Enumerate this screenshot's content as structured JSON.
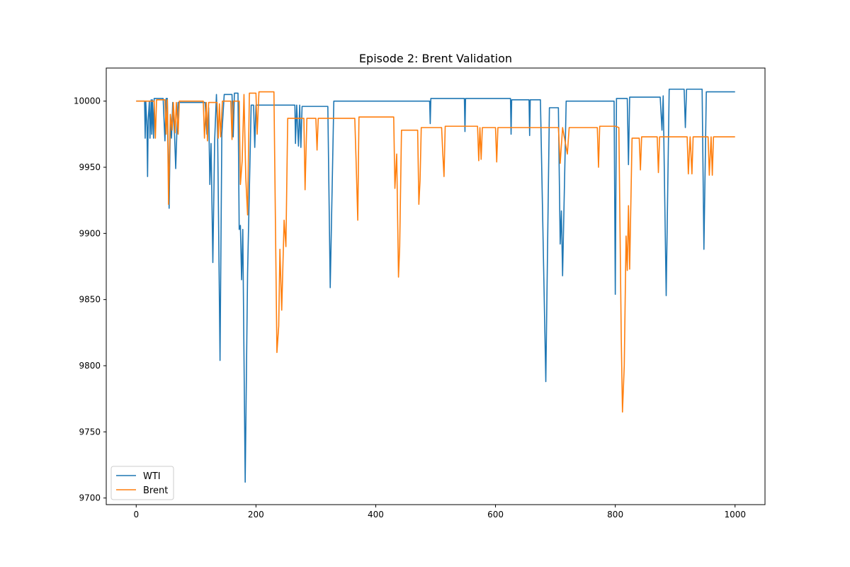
{
  "chart_data": {
    "type": "line",
    "title": "Episode 2: Brent Validation",
    "xlabel": "",
    "ylabel": "",
    "xlim": [
      -50,
      1050
    ],
    "ylim": [
      9695,
      10025
    ],
    "x_ticks": [
      0,
      200,
      400,
      600,
      800,
      1000
    ],
    "y_ticks": [
      9700,
      9750,
      9800,
      9850,
      9900,
      9950,
      10000
    ],
    "grid": false,
    "legend": "lower-left",
    "series": [
      {
        "name": "WTI",
        "color": "#1f77b4",
        "points": [
          [
            0,
            10000
          ],
          [
            14,
            10000
          ],
          [
            15,
            9972
          ],
          [
            16,
            10000
          ],
          [
            18,
            9980
          ],
          [
            19,
            9943
          ],
          [
            20,
            9985
          ],
          [
            22,
            10000
          ],
          [
            23,
            9972
          ],
          [
            25,
            10001
          ],
          [
            26,
            9975
          ],
          [
            27,
            10001
          ],
          [
            29,
            9972
          ],
          [
            30,
            10002
          ],
          [
            45,
            10002
          ],
          [
            48,
            9970
          ],
          [
            50,
            10002
          ],
          [
            52,
            10002
          ],
          [
            55,
            9919
          ],
          [
            57,
            9985
          ],
          [
            59,
            9972
          ],
          [
            61,
            9999
          ],
          [
            64,
            9975
          ],
          [
            66,
            9949
          ],
          [
            68,
            9978
          ],
          [
            70,
            9999
          ],
          [
            115,
            9999
          ],
          [
            118,
            9975
          ],
          [
            121,
            9995
          ],
          [
            123,
            9937
          ],
          [
            125,
            9968
          ],
          [
            128,
            9878
          ],
          [
            131,
            9970
          ],
          [
            134,
            10005
          ],
          [
            136,
            9975
          ],
          [
            140,
            9804
          ],
          [
            143,
            9975
          ],
          [
            147,
            10005
          ],
          [
            160,
            10005
          ],
          [
            162,
            9973
          ],
          [
            164,
            10006
          ],
          [
            170,
            10006
          ],
          [
            172,
            9903
          ],
          [
            174,
            9906
          ],
          [
            176,
            9865
          ],
          [
            178,
            9903
          ],
          [
            182,
            9712
          ],
          [
            186,
            9870
          ],
          [
            192,
            9997
          ],
          [
            196,
            9997
          ],
          [
            198,
            9965
          ],
          [
            200,
            9997
          ],
          [
            265,
            9997
          ],
          [
            266,
            9968
          ],
          [
            268,
            9997
          ],
          [
            271,
            9966
          ],
          [
            273,
            9997
          ],
          [
            275,
            9965
          ],
          [
            277,
            9996
          ],
          [
            320,
            9996
          ],
          [
            324,
            9859
          ],
          [
            330,
            10000
          ],
          [
            490,
            10000
          ],
          [
            491,
            9983
          ],
          [
            492,
            10002
          ],
          [
            548,
            10002
          ],
          [
            549,
            9977
          ],
          [
            550,
            10002
          ],
          [
            625,
            10002
          ],
          [
            626,
            9975
          ],
          [
            627,
            10001
          ],
          [
            656,
            10001
          ],
          [
            657,
            9974
          ],
          [
            658,
            10001
          ],
          [
            675,
            10001
          ],
          [
            684,
            9788
          ],
          [
            690,
            9995
          ],
          [
            705,
            9995
          ],
          [
            708,
            9892
          ],
          [
            710,
            9917
          ],
          [
            712,
            9868
          ],
          [
            718,
            10000
          ],
          [
            798,
            10000
          ],
          [
            800,
            9854
          ],
          [
            802,
            10002
          ],
          [
            820,
            10002
          ],
          [
            822,
            9952
          ],
          [
            824,
            10003
          ],
          [
            875,
            10003
          ],
          [
            878,
            9978
          ],
          [
            880,
            10004
          ],
          [
            885,
            9853
          ],
          [
            890,
            10009
          ],
          [
            915,
            10009
          ],
          [
            917,
            9980
          ],
          [
            919,
            10009
          ],
          [
            930,
            10009
          ],
          [
            945,
            10009
          ],
          [
            948,
            9888
          ],
          [
            952,
            10007
          ],
          [
            1000,
            10007
          ]
        ]
      },
      {
        "name": "Brent",
        "color": "#ff7f0e",
        "points": [
          [
            0,
            10000
          ],
          [
            30,
            10000
          ],
          [
            32,
            9972
          ],
          [
            34,
            10001
          ],
          [
            48,
            10001
          ],
          [
            50,
            9975
          ],
          [
            52,
            10001
          ],
          [
            54,
            9922
          ],
          [
            57,
            9990
          ],
          [
            60,
            9978
          ],
          [
            62,
            9999
          ],
          [
            65,
            9976
          ],
          [
            67,
            9999
          ],
          [
            70,
            9975
          ],
          [
            72,
            10000
          ],
          [
            112,
            10000
          ],
          [
            114,
            9972
          ],
          [
            117,
            9999
          ],
          [
            119,
            9970
          ],
          [
            121,
            9999
          ],
          [
            135,
            9999
          ],
          [
            137,
            9972
          ],
          [
            139,
            9998
          ],
          [
            141,
            9973
          ],
          [
            144,
            10000
          ],
          [
            158,
            10000
          ],
          [
            160,
            9971
          ],
          [
            162,
            10000
          ],
          [
            172,
            10000
          ],
          [
            174,
            9937
          ],
          [
            177,
            9955
          ],
          [
            180,
            10005
          ],
          [
            183,
            9942
          ],
          [
            186,
            9914
          ],
          [
            189,
            10006
          ],
          [
            200,
            10006
          ],
          [
            202,
            9975
          ],
          [
            205,
            10007
          ],
          [
            230,
            10007
          ],
          [
            235,
            9810
          ],
          [
            238,
            9830
          ],
          [
            240,
            9888
          ],
          [
            243,
            9842
          ],
          [
            247,
            9910
          ],
          [
            250,
            9890
          ],
          [
            253,
            9987
          ],
          [
            280,
            9987
          ],
          [
            282,
            9933
          ],
          [
            285,
            9987
          ],
          [
            300,
            9987
          ],
          [
            302,
            9963
          ],
          [
            304,
            9987
          ],
          [
            365,
            9987
          ],
          [
            367,
            9958
          ],
          [
            370,
            9910
          ],
          [
            372,
            9988
          ],
          [
            430,
            9988
          ],
          [
            432,
            9934
          ],
          [
            435,
            9960
          ],
          [
            438,
            9867
          ],
          [
            440,
            9890
          ],
          [
            443,
            9978
          ],
          [
            470,
            9978
          ],
          [
            472,
            9922
          ],
          [
            474,
            9940
          ],
          [
            476,
            9980
          ],
          [
            510,
            9980
          ],
          [
            512,
            9960
          ],
          [
            514,
            9943
          ],
          [
            516,
            9981
          ],
          [
            570,
            9981
          ],
          [
            572,
            9955
          ],
          [
            574,
            9980
          ],
          [
            576,
            9956
          ],
          [
            578,
            9980
          ],
          [
            600,
            9980
          ],
          [
            602,
            9954
          ],
          [
            604,
            9980
          ],
          [
            705,
            9980
          ],
          [
            708,
            9953
          ],
          [
            712,
            9980
          ],
          [
            720,
            9960
          ],
          [
            723,
            9980
          ],
          [
            770,
            9980
          ],
          [
            772,
            9950
          ],
          [
            774,
            9981
          ],
          [
            800,
            9981
          ],
          [
            806,
            9980
          ],
          [
            810,
            9820
          ],
          [
            812,
            9765
          ],
          [
            815,
            9800
          ],
          [
            818,
            9898
          ],
          [
            820,
            9872
          ],
          [
            822,
            9921
          ],
          [
            824,
            9873
          ],
          [
            828,
            9972
          ],
          [
            840,
            9972
          ],
          [
            842,
            9948
          ],
          [
            844,
            9973
          ],
          [
            870,
            9973
          ],
          [
            872,
            9946
          ],
          [
            874,
            9973
          ],
          [
            920,
            9973
          ],
          [
            922,
            9945
          ],
          [
            925,
            9973
          ],
          [
            928,
            9945
          ],
          [
            930,
            9973
          ],
          [
            955,
            9973
          ],
          [
            957,
            9944
          ],
          [
            960,
            9973
          ],
          [
            962,
            9944
          ],
          [
            964,
            9973
          ],
          [
            1000,
            9973
          ]
        ]
      }
    ]
  }
}
